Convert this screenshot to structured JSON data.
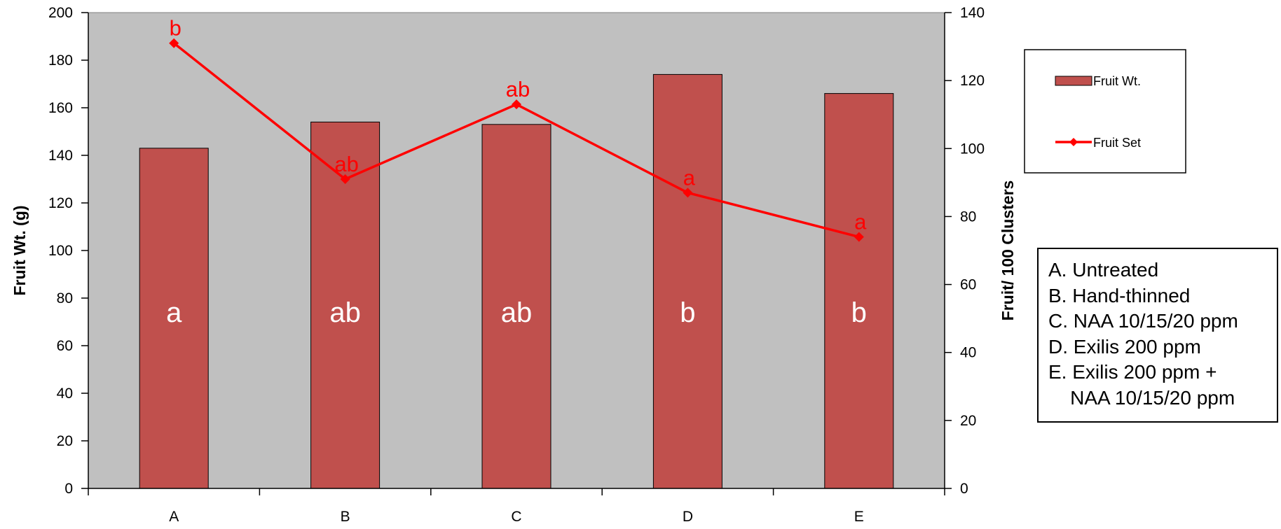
{
  "chart_data": {
    "type": "bar",
    "categories": [
      "A",
      "B",
      "C",
      "D",
      "E"
    ],
    "series": [
      {
        "name": "Fruit Wt.",
        "type": "bar",
        "axis": "left",
        "values": [
          143,
          154,
          153,
          174,
          166
        ],
        "labels": [
          "a",
          "ab",
          "ab",
          "b",
          "b"
        ],
        "color": "#c0504d"
      },
      {
        "name": "Fruit Set",
        "type": "line",
        "axis": "right",
        "values": [
          131,
          91,
          113,
          87,
          74
        ],
        "labels": [
          "b",
          "ab",
          "ab",
          "a",
          "a"
        ],
        "color": "#ff0000"
      }
    ],
    "ylabel": "Fruit Wt.  (g)",
    "ylim": [
      0,
      200
    ],
    "yticks": [
      0,
      20,
      40,
      60,
      80,
      100,
      120,
      140,
      160,
      180,
      200
    ],
    "y2label": "Fruit/ 100 Clusters",
    "y2lim": [
      0,
      140
    ],
    "y2ticks": [
      0,
      20,
      40,
      60,
      80,
      100,
      120,
      140
    ],
    "plot_background": "#c0c0c0",
    "grid": false,
    "legend_position": "right"
  },
  "treatments_box": {
    "lines": [
      "A. Untreated",
      "B. Hand-thinned",
      "C. NAA 10/15/20 ppm",
      "D. Exilis 200 ppm",
      "E. Exilis 200 ppm +",
      "    NAA 10/15/20 ppm"
    ]
  }
}
